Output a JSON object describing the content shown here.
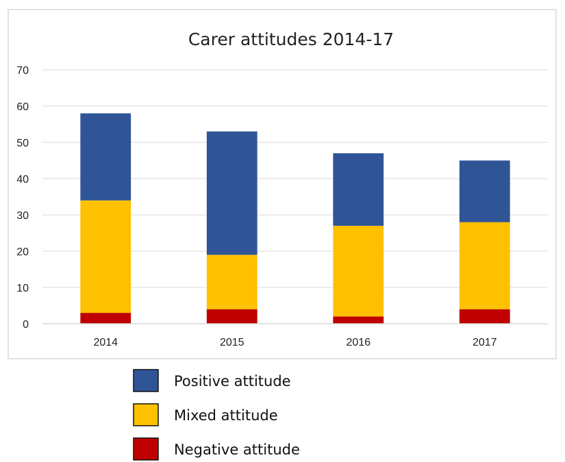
{
  "chart_data": {
    "type": "bar",
    "stacked": true,
    "title": "Carer attitudes 2014-17",
    "xlabel": "",
    "ylabel": "",
    "categories": [
      "2014",
      "2015",
      "2016",
      "2017"
    ],
    "ylim": [
      0,
      70
    ],
    "yticks": [
      "0",
      "10",
      "20",
      "30",
      "40",
      "50",
      "60",
      "70"
    ],
    "grid": true,
    "legend_position": "bottom",
    "series": [
      {
        "name": "Negative attitude",
        "color": "#c00000",
        "values": [
          3,
          4,
          2,
          4
        ]
      },
      {
        "name": "Mixed attitude",
        "color": "#ffc000",
        "values": [
          31,
          15,
          25,
          24
        ]
      },
      {
        "name": "Positive attitude",
        "color": "#2f5597",
        "values": [
          24,
          34,
          20,
          17
        ]
      }
    ],
    "legend_order": [
      "Positive attitude",
      "Mixed attitude",
      "Negative attitude"
    ]
  }
}
